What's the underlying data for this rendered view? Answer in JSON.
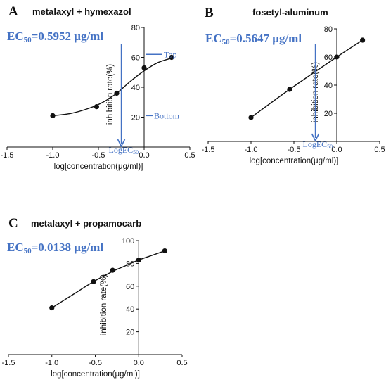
{
  "chart_data": [
    {
      "type": "scatter",
      "panel": "A",
      "title": "metalaxyl + hymexazol",
      "ec50_label": {
        "prefix": "EC",
        "sub": "50",
        "value": "=0.5952 μg/ml"
      },
      "xlabel": "log[concentration(μg/ml)]",
      "ylabel": "inhibition rate(%)",
      "xlim": [
        -1.5,
        0.5
      ],
      "ylim": [
        0,
        80
      ],
      "xticks": [
        "-1.5",
        "-1.0",
        "-0.5",
        "0.0",
        "0.5"
      ],
      "yticks": [
        "20",
        "40",
        "60",
        "80"
      ],
      "x": [
        -1.0,
        -0.52,
        -0.3,
        0.0,
        0.3
      ],
      "y": [
        21,
        27,
        36,
        53,
        60
      ],
      "fit": [
        [
          -1.0,
          21
        ],
        [
          -0.8,
          22.5
        ],
        [
          -0.6,
          26
        ],
        [
          -0.45,
          30
        ],
        [
          -0.3,
          36
        ],
        [
          -0.15,
          44
        ],
        [
          0.0,
          51
        ],
        [
          0.15,
          56.5
        ],
        [
          0.3,
          59.5
        ]
      ],
      "annotations": {
        "top": "Top",
        "bottom": "Bottom",
        "logec": "LogEC",
        "logec_sub": "50"
      },
      "annot_levels": {
        "top": 62,
        "bottom": 21,
        "logec_x": -0.25
      }
    },
    {
      "type": "scatter",
      "panel": "B",
      "title": "fosetyl-aluminum",
      "ec50_label": {
        "prefix": "EC",
        "sub": "50",
        "value": "=0.5647 μg/ml"
      },
      "xlabel": "log[concentration(μg/ml)]",
      "ylabel": "inhibition rate(%)",
      "xlim": [
        -1.5,
        0.5
      ],
      "ylim": [
        0,
        80
      ],
      "xticks": [
        "-1.5",
        "-1.0",
        "-0.5",
        "0.0",
        "0.5"
      ],
      "yticks": [
        "20",
        "40",
        "60",
        "80"
      ],
      "x": [
        -1.0,
        -0.55,
        0.0,
        0.3
      ],
      "y": [
        17,
        37,
        60,
        72
      ],
      "fit": [
        [
          -1.0,
          17
        ],
        [
          -0.55,
          37
        ],
        [
          0.0,
          60
        ],
        [
          0.3,
          72
        ]
      ],
      "annotations": {
        "logec": "LogEC",
        "logec_sub": "50"
      },
      "annot_levels": {
        "logec_x": -0.25
      }
    },
    {
      "type": "scatter",
      "panel": "C",
      "title": "metalaxyl + propamocarb",
      "ec50_label": {
        "prefix": "EC",
        "sub": "50",
        "value": "=0.0138 μg/ml"
      },
      "xlabel": "log[concentration(μg/ml)]",
      "ylabel": "inhibition rate(%)",
      "xlim": [
        -1.5,
        0.5
      ],
      "ylim": [
        0,
        100
      ],
      "xticks": [
        "-1.5",
        "-1.0",
        "-0.5",
        "0.0",
        "0.5"
      ],
      "yticks": [
        "20",
        "40",
        "60",
        "80",
        "100"
      ],
      "x": [
        -1.0,
        -0.52,
        -0.3,
        0.0,
        0.3
      ],
      "y": [
        41,
        64,
        74,
        83,
        91
      ],
      "fit": [
        [
          -1.0,
          41
        ],
        [
          -0.75,
          53
        ],
        [
          -0.52,
          64
        ],
        [
          -0.3,
          73
        ],
        [
          -0.15,
          78
        ],
        [
          0.0,
          83
        ],
        [
          0.15,
          87
        ],
        [
          0.3,
          91
        ]
      ]
    }
  ]
}
